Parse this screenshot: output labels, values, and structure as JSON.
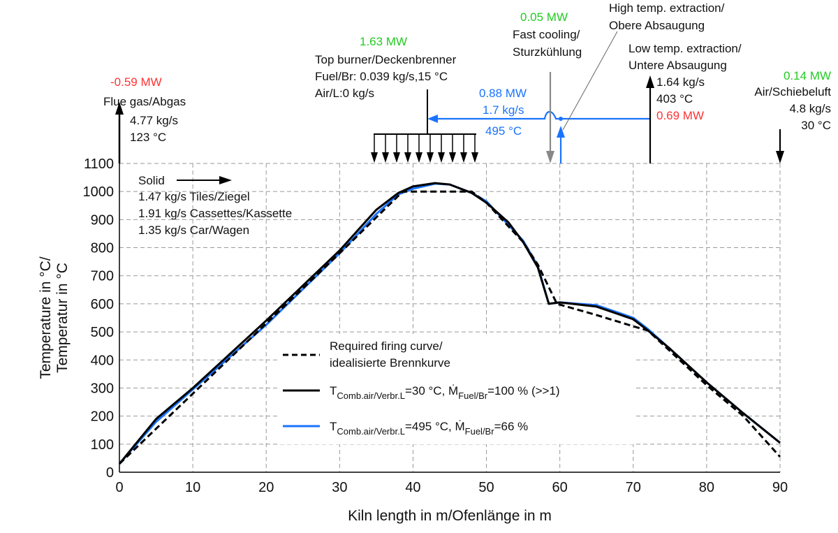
{
  "chart_data": {
    "type": "line",
    "xlabel": "Kiln length in m/Ofenlänge in m",
    "ylabel_line1": "Temperature in °C/",
    "ylabel_line2": "Temperatur in °C",
    "xlim": [
      0,
      90
    ],
    "ylim": [
      0,
      1100
    ],
    "xticks": [
      0,
      10,
      20,
      30,
      40,
      50,
      60,
      70,
      80,
      90
    ],
    "yticks": [
      0,
      100,
      200,
      300,
      400,
      500,
      600,
      700,
      800,
      900,
      1000,
      1100
    ],
    "grid": true,
    "legend_position": "center",
    "series": [
      {
        "name": "Required firing curve/ idealisierte Brennkurve",
        "legend_line1": "Required firing curve/",
        "legend_line2": "idealisierte Brennkurve",
        "color": "#000000",
        "style": "dashed",
        "x": [
          0,
          10,
          20,
          30,
          38.6,
          48,
          50,
          55,
          57,
          59.6,
          65,
          70,
          72,
          80,
          85,
          90
        ],
        "y": [
          30,
          280,
          530,
          780,
          1000,
          1000,
          960,
          820,
          740,
          600,
          560,
          520,
          505,
          310,
          200,
          55
        ]
      },
      {
        "name": "T Comb.air/Verbr.L=30 °C, Ṁ Fuel/Br=100 % (>>1)",
        "legend_T": "T",
        "legend_T_sub": "Comb.air/Verbr.L",
        "legend_T_val": "=30 °C, ",
        "legend_M": "Ṁ",
        "legend_M_sub": "Fuel/Br",
        "legend_M_val": "=100 % (>>1)",
        "color": "#000000",
        "style": "solid",
        "x": [
          0,
          5,
          10,
          20,
          30,
          35,
          38,
          40,
          43,
          45,
          48,
          50,
          53,
          55,
          57,
          58.5,
          60,
          65,
          70,
          72,
          75,
          80,
          85,
          90
        ],
        "y": [
          30,
          190,
          300,
          540,
          790,
          935,
          995,
          1018,
          1030,
          1025,
          995,
          960,
          890,
          820,
          730,
          600,
          605,
          590,
          545,
          505,
          440,
          320,
          210,
          105
        ]
      },
      {
        "name": "T Comb.air/Verbr.L=495 °C, Ṁ Fuel/Br=66 %",
        "legend_T": "T",
        "legend_T_sub": "Comb.air/Verbr.L",
        "legend_T_val": "=495 °C, ",
        "legend_M": "Ṁ",
        "legend_M_sub": "Fuel/Br",
        "legend_M_val": "=66 %",
        "color": "#1a73ff",
        "style": "solid",
        "x": [
          0,
          5,
          10,
          20,
          30,
          35,
          38,
          40,
          43,
          45,
          48,
          50,
          55,
          57,
          58.5,
          60,
          65,
          70,
          72,
          75,
          80,
          85,
          90
        ],
        "y": [
          30,
          180,
          295,
          525,
          780,
          920,
          990,
          1010,
          1028,
          1025,
          995,
          965,
          825,
          735,
          600,
          605,
          595,
          550,
          510,
          440,
          320,
          210,
          105
        ]
      }
    ]
  },
  "annotations": {
    "flue_gas": {
      "power": "-0.59 MW",
      "label": "Flue gas/Abgas",
      "mass": "4.77 kg/s",
      "temp": "123 °C"
    },
    "burner": {
      "power": "1.63 MW",
      "label": "Top burner/Deckenbrenner",
      "fuel": "Fuel/Br: 0.039 kg/s,15 °C",
      "air": "Air/L:0 kg/s"
    },
    "recirc": {
      "power": "0.88 MW",
      "mass": "1.7 kg/s",
      "temp": "495 °C"
    },
    "fast_cooling": {
      "power": "0.05 MW",
      "label1": "Fast cooling/",
      "label2": "Sturzkühlung"
    },
    "high_extraction": {
      "label1": "High temp. extraction/",
      "label2": "Obere Absaugung"
    },
    "low_extraction": {
      "label1": "Low temp. extraction/",
      "label2": "Untere Absaugung",
      "mass": "1.64 kg/s",
      "temp": "403 °C",
      "power": "0.69 MW"
    },
    "push_air": {
      "power": "0.14 MW",
      "label": "Air/Schiebeluft",
      "mass": "4.8 kg/s",
      "temp": "30 °C"
    },
    "solid": {
      "label": "Solid",
      "tiles": "1.47 kg/s Tiles/Ziegel",
      "cassettes": "1.91 kg/s Cassettes/Kassette",
      "car": "1.35 kg/s Car/Wagen"
    }
  },
  "colors": {
    "loss": "#ff3333",
    "gain": "#22cc22",
    "recirc": "#1a73ff",
    "cooling_arrow": "#888888"
  }
}
